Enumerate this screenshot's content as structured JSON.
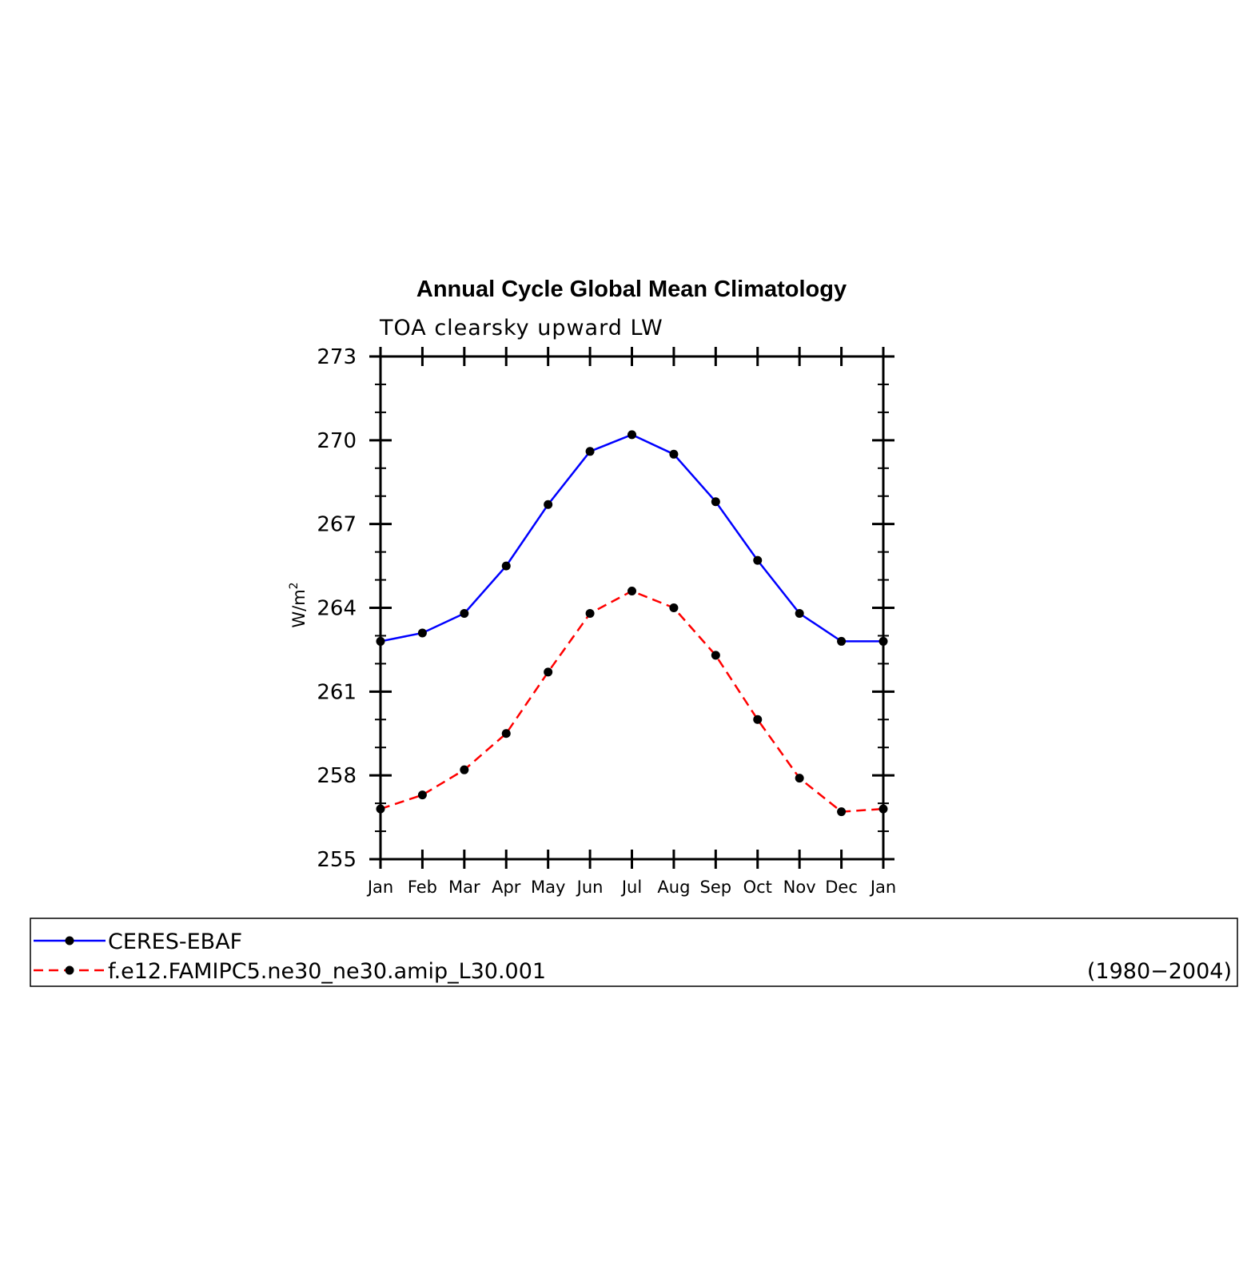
{
  "chart_data": {
    "type": "line",
    "title": "Annual Cycle Global Mean Climatology",
    "subtitle": "TOA clearsky upward LW",
    "ylabel": "W/m",
    "ylabel_superscript": "2",
    "xlabel": "",
    "categories": [
      "Jan",
      "Feb",
      "Mar",
      "Apr",
      "May",
      "Jun",
      "Jul",
      "Aug",
      "Sep",
      "Oct",
      "Nov",
      "Dec",
      "Jan"
    ],
    "ylim": [
      255,
      273
    ],
    "yticks": [
      "255",
      "258",
      "261",
      "264",
      "267",
      "270",
      "273"
    ],
    "grid": false,
    "legend_position": "below",
    "series": [
      {
        "name": "CERES-EBAF",
        "color": "#0000ff",
        "dash": "solid",
        "marker": "filled-circle",
        "values": [
          262.8,
          263.1,
          263.8,
          265.5,
          267.7,
          269.6,
          270.2,
          269.5,
          267.8,
          265.7,
          263.8,
          262.8,
          262.8
        ]
      },
      {
        "name": "f.e12.FAMIPC5.ne30_ne30.amip_L30.001",
        "color": "#ff0000",
        "dash": "dashed",
        "marker": "filled-circle",
        "values": [
          256.8,
          257.3,
          258.2,
          259.5,
          261.7,
          263.8,
          264.6,
          264.0,
          262.3,
          260.0,
          257.9,
          256.7,
          256.8
        ]
      }
    ],
    "legend_note": "(1980−2004)"
  }
}
